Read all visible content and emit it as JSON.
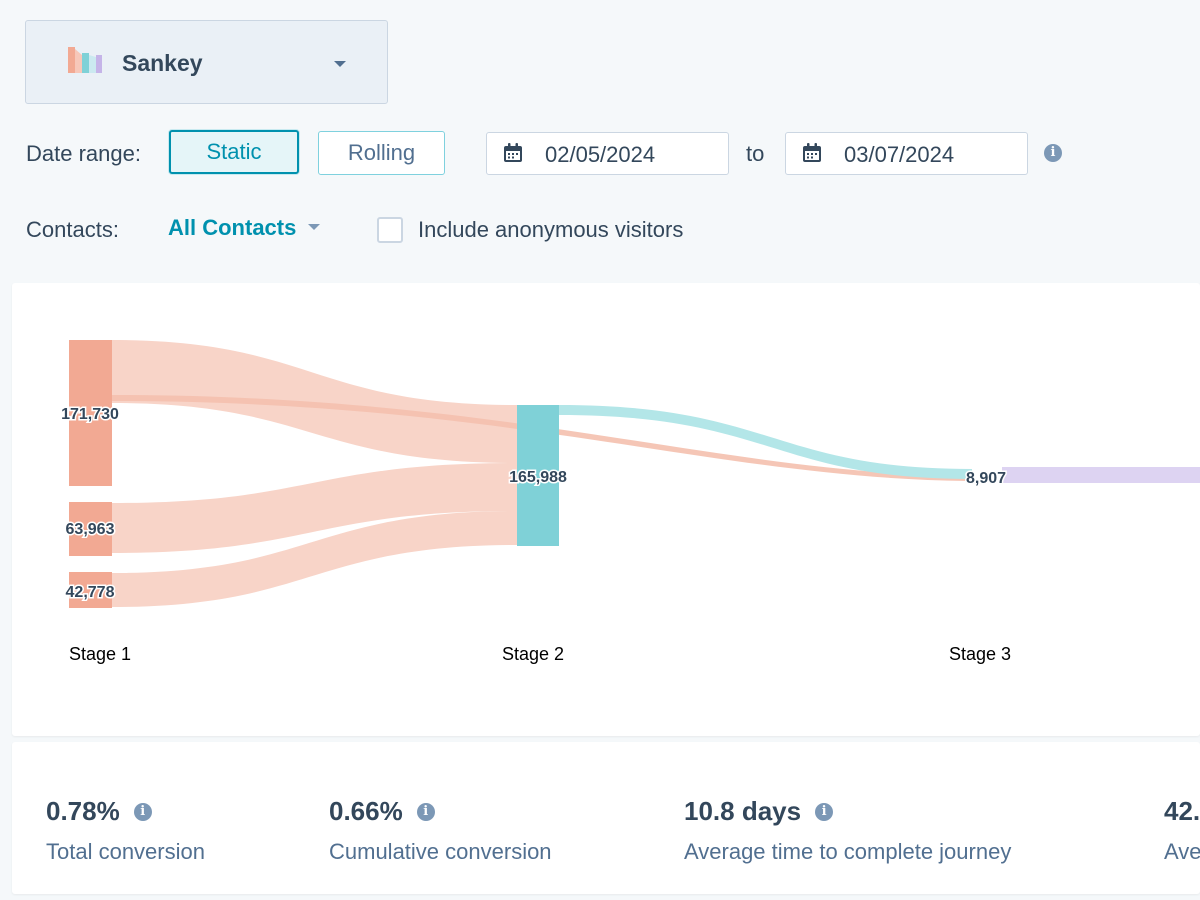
{
  "chart_type_selector": {
    "label": "Sankey",
    "icon": "sankey-logo-icon"
  },
  "date_range": {
    "label": "Date range:",
    "static_label": "Static",
    "rolling_label": "Rolling",
    "selected": "Static",
    "start_date": "02/05/2024",
    "to_label": "to",
    "end_date": "03/07/2024"
  },
  "contacts": {
    "label": "Contacts:",
    "selected": "All Contacts",
    "include_anonymous_label": "Include anonymous visitors",
    "include_anonymous_checked": false
  },
  "colors": {
    "accent": "#0091ae",
    "stage1_node": "#f2a993",
    "stage1_link": "#f8d4c8",
    "stage2_node": "#7fd1d7",
    "stage2_link": "#b3e6e8",
    "stage3_link": "#ddd3f2",
    "text": "#33475b"
  },
  "chart_data": {
    "type": "sankey",
    "stages": [
      "Stage 1",
      "Stage 2",
      "Stage 3"
    ],
    "nodes": [
      {
        "stage": "Stage 1",
        "value": "171,730"
      },
      {
        "stage": "Stage 1",
        "value": "63,963"
      },
      {
        "stage": "Stage 1",
        "value": "42,778"
      },
      {
        "stage": "Stage 2",
        "value": "165,988"
      },
      {
        "stage": "Stage 3",
        "value": "8,907"
      }
    ]
  },
  "metrics": [
    {
      "value": "0.78%",
      "label": "Total conversion"
    },
    {
      "value": "0.66%",
      "label": "Cumulative conversion"
    },
    {
      "value": "10.8 days",
      "label": "Average time to complete journey"
    },
    {
      "value": "42.",
      "label": "Ave"
    }
  ]
}
